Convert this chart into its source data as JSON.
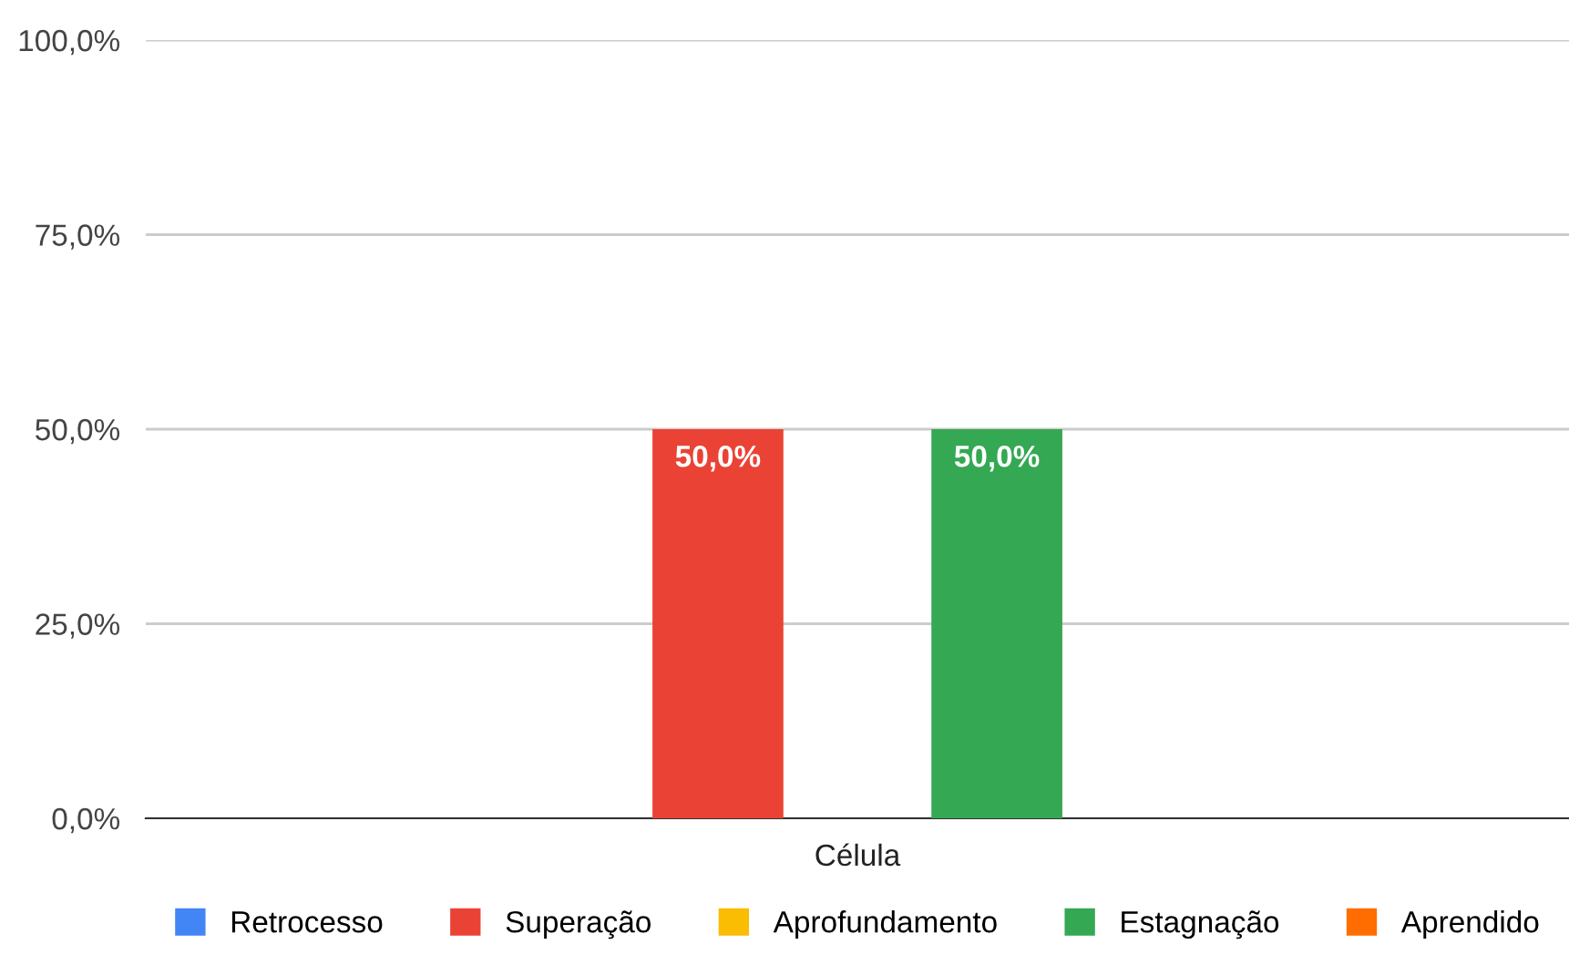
{
  "chart_data": {
    "type": "bar",
    "categories": [
      "Célula"
    ],
    "series": [
      {
        "name": "Retrocesso",
        "color": "#4285f4",
        "values": [
          0
        ],
        "value_labels": [
          null
        ]
      },
      {
        "name": "Superação",
        "color": "#ea4335",
        "values": [
          50
        ],
        "value_labels": [
          "50,0%"
        ]
      },
      {
        "name": "Aprofundamento",
        "color": "#fbbc04",
        "values": [
          0
        ],
        "value_labels": [
          null
        ]
      },
      {
        "name": "Estagnação",
        "color": "#34a853",
        "values": [
          50
        ],
        "value_labels": [
          "50,0%"
        ]
      },
      {
        "name": "Aprendido",
        "color": "#ff6d01",
        "values": [
          0
        ],
        "value_labels": [
          null
        ]
      }
    ],
    "ylim": [
      0,
      100
    ],
    "yticks": [
      {
        "value": 0,
        "label": "0,0%"
      },
      {
        "value": 25,
        "label": "25,0%"
      },
      {
        "value": 50,
        "label": "50,0%"
      },
      {
        "value": 75,
        "label": "75,0%"
      },
      {
        "value": 100,
        "label": "100,0%"
      }
    ],
    "grid": "y",
    "legend": "bottom"
  }
}
